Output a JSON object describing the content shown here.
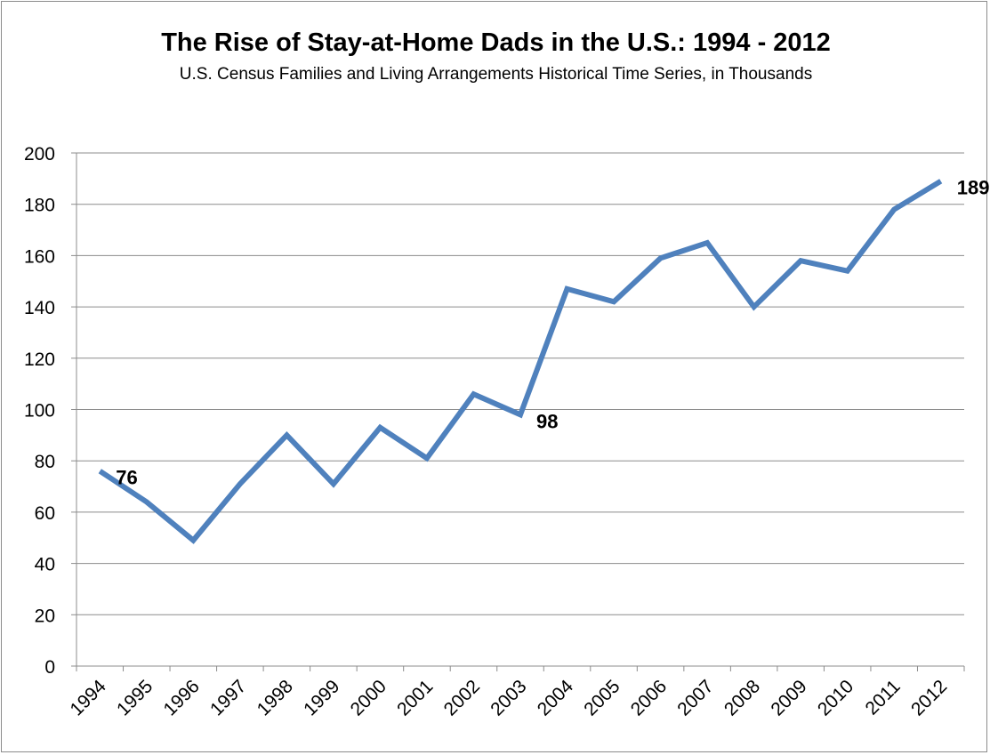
{
  "chart_data": {
    "type": "line",
    "title": "The Rise of Stay-at-Home Dads in the U.S.: 1994 - 2012",
    "subtitle": "U.S. Census Families and Living Arrangements Historical Time Series, in Thousands",
    "categories": [
      "1994",
      "1995",
      "1996",
      "1997",
      "1998",
      "1999",
      "2000",
      "2001",
      "2002",
      "2003",
      "2004",
      "2005",
      "2006",
      "2007",
      "2008",
      "2009",
      "2010",
      "2011",
      "2012"
    ],
    "values": [
      76,
      64,
      49,
      71,
      90,
      71,
      93,
      81,
      106,
      98,
      147,
      142,
      159,
      165,
      140,
      158,
      154,
      178,
      189
    ],
    "data_labels": [
      {
        "category": "1994",
        "text": "76"
      },
      {
        "category": "2003",
        "text": "98"
      },
      {
        "category": "2012",
        "text": "189"
      }
    ],
    "ylim": [
      0,
      200
    ],
    "yticks": [
      0,
      20,
      40,
      60,
      80,
      100,
      120,
      140,
      160,
      180,
      200
    ],
    "xlabel": "",
    "ylabel": "",
    "grid": true,
    "legend": "none",
    "line_color": "#4F81BD"
  }
}
